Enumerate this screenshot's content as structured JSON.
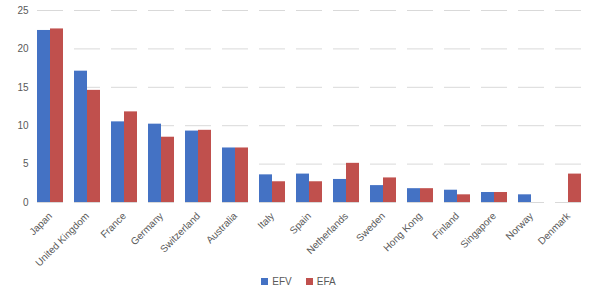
{
  "chart_data": {
    "type": "bar",
    "categories": [
      "Japan",
      "United Kingdom",
      "France",
      "Germany",
      "Switzerland",
      "Australia",
      "Italy",
      "Spain",
      "Netherlands",
      "Sweden",
      "Hong Kong",
      "Finland",
      "Singapore",
      "Norway",
      "Denmark"
    ],
    "series": [
      {
        "name": "EFV",
        "color": "#4472c4",
        "values": [
          22.4,
          17.1,
          10.5,
          10.2,
          9.3,
          7.1,
          3.6,
          3.7,
          3.0,
          2.2,
          1.8,
          1.6,
          1.3,
          1.0,
          null
        ]
      },
      {
        "name": "EFA",
        "color": "#c0504d",
        "values": [
          22.6,
          14.6,
          11.8,
          8.5,
          9.4,
          7.1,
          2.7,
          2.7,
          5.1,
          3.2,
          1.8,
          1.0,
          1.3,
          null,
          3.7
        ]
      }
    ],
    "ylim": [
      0,
      25
    ],
    "yticks": [
      0,
      5,
      10,
      15,
      20,
      25
    ],
    "grid": true,
    "legend": "bottom"
  }
}
